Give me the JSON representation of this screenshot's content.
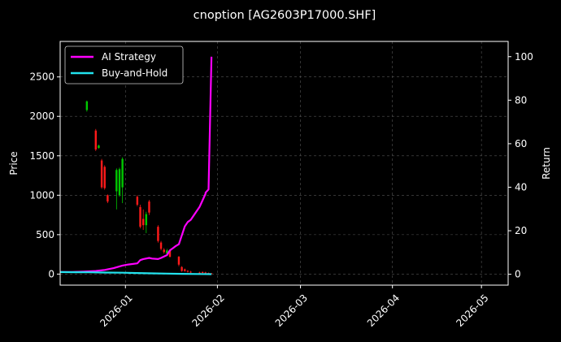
{
  "chart_data": {
    "type": "line",
    "title": "cnoption [AG2603P17000.SHF]",
    "xlabel": "",
    "ylabel": "Price",
    "ylabel_right": "Return",
    "x_ticks": [
      "2026-01",
      "2026-02",
      "2026-03",
      "2026-04",
      "2026-05"
    ],
    "y_ticks_left": [
      "0",
      "500",
      "1000",
      "1500",
      "2000",
      "2500"
    ],
    "y_ticks_right": [
      "0",
      "20",
      "40",
      "60",
      "80",
      "100"
    ],
    "xlim": [
      "2025-12-10",
      "2026-05-10"
    ],
    "ylim_left": [
      -140,
      2950
    ],
    "ylim_right": [
      -5,
      107
    ],
    "grid": true,
    "legend_position": "top-left",
    "colors": {
      "background": "#000000",
      "up": "#00c800",
      "down": "#ff1a1a",
      "grid": "#555555",
      "axes": "#ffffff"
    },
    "series": [
      {
        "name": "AI Strategy",
        "color": "#ff00ff",
        "axis": "right",
        "x": [
          "2025-12-10",
          "2025-12-14",
          "2025-12-18",
          "2025-12-22",
          "2025-12-25",
          "2025-12-28",
          "2025-12-31",
          "2026-01-02",
          "2026-01-05",
          "2026-01-06",
          "2026-01-07",
          "2026-01-09",
          "2026-01-10",
          "2026-01-12",
          "2026-01-13",
          "2026-01-15",
          "2026-01-16",
          "2026-01-17",
          "2026-01-18",
          "2026-01-19",
          "2026-01-21",
          "2026-01-22",
          "2026-01-23",
          "2026-01-25",
          "2026-01-26",
          "2026-01-27",
          "2026-01-28",
          "2026-01-28",
          "2026-01-29",
          "2026-01-30"
        ],
        "values": [
          1,
          1,
          1.2,
          1.5,
          2,
          2.8,
          4,
          4.5,
          5,
          6.5,
          7,
          7.5,
          7.2,
          7,
          7.5,
          8.8,
          11,
          12,
          13,
          13.8,
          22,
          24,
          25,
          29,
          31,
          34,
          37,
          37.5,
          39,
          100
        ]
      },
      {
        "name": "Buy-and-Hold",
        "color": "#22e3ee",
        "axis": "right",
        "x": [
          "2025-12-10",
          "2025-12-15",
          "2025-12-20",
          "2025-12-25",
          "2025-12-31",
          "2026-01-05",
          "2026-01-10",
          "2026-01-15",
          "2026-01-20",
          "2026-01-25",
          "2026-01-30"
        ],
        "values": [
          1,
          0.95,
          0.9,
          0.8,
          0.7,
          0.55,
          0.4,
          0.3,
          0.2,
          0.12,
          0.05
        ]
      }
    ],
    "candles": [
      {
        "date": "2025-12-19",
        "open": 2080,
        "close": 2190,
        "high": 2200,
        "low": 2060
      },
      {
        "date": "2025-12-22",
        "open": 1820,
        "close": 1580,
        "high": 1840,
        "low": 1560
      },
      {
        "date": "2025-12-23",
        "open": 1600,
        "close": 1630,
        "high": 1640,
        "low": 1590
      },
      {
        "date": "2025-12-24",
        "open": 1440,
        "close": 1100,
        "high": 1460,
        "low": 1080
      },
      {
        "date": "2025-12-25",
        "open": 1360,
        "close": 1090,
        "high": 1380,
        "low": 1070
      },
      {
        "date": "2025-12-26",
        "open": 1000,
        "close": 920,
        "high": 1010,
        "low": 900
      },
      {
        "date": "2025-12-29",
        "open": 1050,
        "close": 1320,
        "high": 1340,
        "low": 820
      },
      {
        "date": "2025-12-30",
        "open": 1000,
        "close": 1330,
        "high": 1350,
        "low": 980
      },
      {
        "date": "2025-12-31",
        "open": 1100,
        "close": 1460,
        "high": 1480,
        "low": 900
      },
      {
        "date": "2026-01-05",
        "open": 980,
        "close": 880,
        "high": 1000,
        "low": 860
      },
      {
        "date": "2026-01-06",
        "open": 850,
        "close": 600,
        "high": 880,
        "low": 580
      },
      {
        "date": "2026-01-07",
        "open": 700,
        "close": 620,
        "high": 820,
        "low": 560
      },
      {
        "date": "2026-01-08",
        "open": 620,
        "close": 760,
        "high": 790,
        "low": 520
      },
      {
        "date": "2026-01-09",
        "open": 920,
        "close": 780,
        "high": 940,
        "low": 750
      },
      {
        "date": "2026-01-12",
        "open": 600,
        "close": 420,
        "high": 620,
        "low": 400
      },
      {
        "date": "2026-01-13",
        "open": 400,
        "close": 320,
        "high": 420,
        "low": 300
      },
      {
        "date": "2026-01-14",
        "open": 310,
        "close": 280,
        "high": 330,
        "low": 260
      },
      {
        "date": "2026-01-15",
        "open": 260,
        "close": 300,
        "high": 320,
        "low": 250
      },
      {
        "date": "2026-01-16",
        "open": 300,
        "close": 220,
        "high": 310,
        "low": 210
      },
      {
        "date": "2026-01-19",
        "open": 220,
        "close": 120,
        "high": 230,
        "low": 100
      },
      {
        "date": "2026-01-20",
        "open": 90,
        "close": 40,
        "high": 100,
        "low": 30
      },
      {
        "date": "2026-01-21",
        "open": 60,
        "close": 40,
        "high": 70,
        "low": 30
      },
      {
        "date": "2026-01-22",
        "open": 40,
        "close": 30,
        "high": 50,
        "low": 20
      },
      {
        "date": "2026-01-23",
        "open": 30,
        "close": 20,
        "high": 40,
        "low": 15
      },
      {
        "date": "2026-01-26",
        "open": 20,
        "close": 15,
        "high": 30,
        "low": 10
      },
      {
        "date": "2026-01-27",
        "open": 25,
        "close": 15,
        "high": 35,
        "low": 10
      },
      {
        "date": "2026-01-28",
        "open": 20,
        "close": 10,
        "high": 30,
        "low": 5
      },
      {
        "date": "2026-01-29",
        "open": 15,
        "close": 8,
        "high": 20,
        "low": 5
      },
      {
        "date": "2026-01-30",
        "open": 10,
        "close": 5,
        "high": 15,
        "low": 3
      }
    ]
  }
}
